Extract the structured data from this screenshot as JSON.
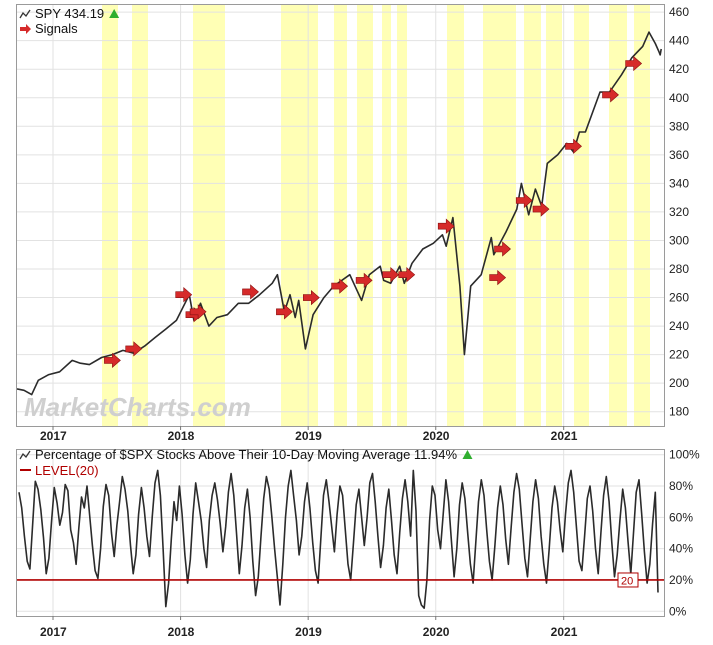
{
  "watermark": "MarketCharts.com",
  "colors": {
    "price_line": "#2b2b2b",
    "band": "#ffffa8",
    "signal": "#d62a2a",
    "level": "#b00000",
    "up_triangle": "#2fae2f"
  },
  "x_axis_years": [
    "2017",
    "2018",
    "2019",
    "2020",
    "2021"
  ],
  "chart_data": [
    {
      "type": "line",
      "legend": [
        {
          "label": "SPY 434.19",
          "icon": "up-triangle-icon"
        },
        {
          "label": "Signals",
          "icon": "arrow-right-icon"
        }
      ],
      "yticks": [
        "460",
        "440",
        "420",
        "400",
        "380",
        "360",
        "340",
        "320",
        "300",
        "280",
        "260",
        "240",
        "220",
        "200",
        "180"
      ],
      "ylim": [
        170,
        465
      ],
      "xlim": [
        "2016-09-20",
        "2021-10-15"
      ],
      "series": [
        {
          "name": "SPY",
          "points": [
            [
              "2016-09-20",
              196
            ],
            [
              "2016-10-10",
              195
            ],
            [
              "2016-11-01",
              192
            ],
            [
              "2016-11-20",
              202
            ],
            [
              "2016-12-20",
              206
            ],
            [
              "2017-01-20",
              208
            ],
            [
              "2017-02-25",
              216
            ],
            [
              "2017-03-20",
              214
            ],
            [
              "2017-04-15",
              213
            ],
            [
              "2017-05-20",
              218
            ],
            [
              "2017-06-20",
              220
            ],
            [
              "2017-07-20",
              223
            ],
            [
              "2017-08-20",
              221
            ],
            [
              "2017-09-20",
              226
            ],
            [
              "2017-10-20",
              232
            ],
            [
              "2017-11-20",
              238
            ],
            [
              "2017-12-20",
              244
            ],
            [
              "2018-01-26",
              262
            ],
            [
              "2018-02-08",
              244
            ],
            [
              "2018-02-27",
              256
            ],
            [
              "2018-03-23",
              240
            ],
            [
              "2018-04-15",
              246
            ],
            [
              "2018-05-15",
              248
            ],
            [
              "2018-06-15",
              256
            ],
            [
              "2018-07-15",
              256
            ],
            [
              "2018-08-15",
              262
            ],
            [
              "2018-09-20",
              270
            ],
            [
              "2018-10-05",
              276
            ],
            [
              "2018-10-25",
              250
            ],
            [
              "2018-11-10",
              262
            ],
            [
              "2018-11-25",
              246
            ],
            [
              "2018-12-05",
              258
            ],
            [
              "2018-12-24",
              224
            ],
            [
              "2019-01-15",
              248
            ],
            [
              "2019-02-15",
              260
            ],
            [
              "2019-03-15",
              268
            ],
            [
              "2019-04-30",
              276
            ],
            [
              "2019-05-15",
              268
            ],
            [
              "2019-06-03",
              258
            ],
            [
              "2019-06-25",
              276
            ],
            [
              "2019-07-26",
              282
            ],
            [
              "2019-08-05",
              272
            ],
            [
              "2019-08-25",
              270
            ],
            [
              "2019-09-20",
              282
            ],
            [
              "2019-10-03",
              270
            ],
            [
              "2019-10-25",
              284
            ],
            [
              "2019-11-25",
              294
            ],
            [
              "2019-12-25",
              298
            ],
            [
              "2020-01-20",
              304
            ],
            [
              "2020-01-31",
              296
            ],
            [
              "2020-02-19",
              316
            ],
            [
              "2020-03-10",
              268
            ],
            [
              "2020-03-23",
              220
            ],
            [
              "2020-04-10",
              268
            ],
            [
              "2020-05-10",
              276
            ],
            [
              "2020-06-08",
              302
            ],
            [
              "2020-06-15",
              290
            ],
            [
              "2020-07-20",
              306
            ],
            [
              "2020-08-20",
              322
            ],
            [
              "2020-09-02",
              340
            ],
            [
              "2020-09-23",
              318
            ],
            [
              "2020-10-12",
              336
            ],
            [
              "2020-10-30",
              324
            ],
            [
              "2020-11-15",
              354
            ],
            [
              "2020-12-15",
              360
            ],
            [
              "2021-01-10",
              368
            ],
            [
              "2021-01-29",
              362
            ],
            [
              "2021-02-15",
              376
            ],
            [
              "2021-03-04",
              376
            ],
            [
              "2021-04-15",
              404
            ],
            [
              "2021-05-12",
              404
            ],
            [
              "2021-06-15",
              416
            ],
            [
              "2021-07-15",
              428
            ],
            [
              "2021-08-15",
              436
            ],
            [
              "2021-09-02",
              446
            ],
            [
              "2021-09-20",
              438
            ],
            [
              "2021-10-01",
              432
            ],
            [
              "2021-10-04",
              430
            ],
            [
              "2021-10-07",
              434.19
            ]
          ]
        }
      ],
      "signals": [
        [
          "2017-06-20",
          216
        ],
        [
          "2017-08-20",
          224
        ],
        [
          "2018-01-10",
          262
        ],
        [
          "2018-02-08",
          248
        ],
        [
          "2018-02-20",
          250
        ],
        [
          "2018-07-20",
          264
        ],
        [
          "2018-10-25",
          250
        ],
        [
          "2019-01-10",
          260
        ],
        [
          "2019-04-01",
          268
        ],
        [
          "2019-06-10",
          272
        ],
        [
          "2019-08-25",
          276
        ],
        [
          "2019-10-10",
          276
        ],
        [
          "2020-01-31",
          310
        ],
        [
          "2020-06-26",
          274
        ],
        [
          "2020-07-10",
          294
        ],
        [
          "2020-09-10",
          328
        ],
        [
          "2020-10-28",
          322
        ],
        [
          "2021-01-29",
          366
        ],
        [
          "2021-05-15",
          402
        ],
        [
          "2021-07-20",
          424
        ]
      ]
    },
    {
      "type": "line",
      "legend": [
        {
          "label": "Percentage of $SPX Stocks Above Their 10-Day Moving Average 11.94%",
          "icon": "up-triangle-icon"
        },
        {
          "label": "LEVEL(20)",
          "icon": "line-icon"
        }
      ],
      "yticks": [
        "100%",
        "80%",
        "60%",
        "40%",
        "20%",
        "0%"
      ],
      "ylim": [
        -3,
        103
      ],
      "level": 20,
      "level_label": "20",
      "xlim": [
        "2016-09-20",
        "2021-10-15"
      ],
      "series": [
        {
          "name": "Percentage of $SPX Stocks Above Their 10-Day Moving Average",
          "values": [
            76,
            66,
            48,
            32,
            27,
            55,
            83,
            78,
            65,
            47,
            24,
            34,
            58,
            79,
            69,
            55,
            63,
            81,
            77,
            52,
            44,
            30,
            53,
            73,
            66,
            80,
            61,
            42,
            26,
            21,
            40,
            67,
            81,
            74,
            50,
            35,
            55,
            70,
            86,
            78,
            64,
            42,
            24,
            36,
            62,
            79,
            66,
            48,
            35,
            60,
            82,
            90,
            74,
            40,
            3,
            18,
            46,
            70,
            58,
            80,
            62,
            36,
            18,
            33,
            62,
            82,
            70,
            58,
            40,
            28,
            58,
            74,
            82,
            71,
            56,
            38,
            54,
            76,
            88,
            74,
            50,
            24,
            42,
            66,
            78,
            60,
            32,
            10,
            22,
            48,
            72,
            86,
            78,
            60,
            40,
            22,
            4,
            30,
            60,
            80,
            90,
            74,
            58,
            36,
            48,
            70,
            82,
            66,
            44,
            26,
            18,
            46,
            74,
            84,
            70,
            54,
            38,
            62,
            80,
            74,
            52,
            30,
            20,
            44,
            68,
            78,
            60,
            42,
            60,
            82,
            88,
            70,
            48,
            28,
            42,
            66,
            78,
            58,
            36,
            24,
            50,
            72,
            84,
            70,
            48,
            90,
            64,
            10,
            4,
            2,
            20,
            58,
            80,
            74,
            52,
            40,
            62,
            84,
            70,
            46,
            22,
            40,
            68,
            82,
            72,
            50,
            30,
            18,
            44,
            70,
            84,
            74,
            52,
            32,
            20,
            42,
            66,
            80,
            68,
            46,
            30,
            54,
            76,
            88,
            78,
            56,
            34,
            22,
            46,
            70,
            84,
            72,
            48,
            30,
            18,
            40,
            66,
            80,
            70,
            52,
            38,
            62,
            82,
            90,
            76,
            54,
            32,
            26,
            48,
            72,
            80,
            64,
            40,
            24,
            50,
            74,
            86,
            70,
            44,
            22,
            36,
            58,
            78,
            66,
            44,
            24,
            50,
            76,
            84,
            62,
            38,
            18,
            30,
            56,
            76,
            12
          ]
        }
      ]
    }
  ]
}
